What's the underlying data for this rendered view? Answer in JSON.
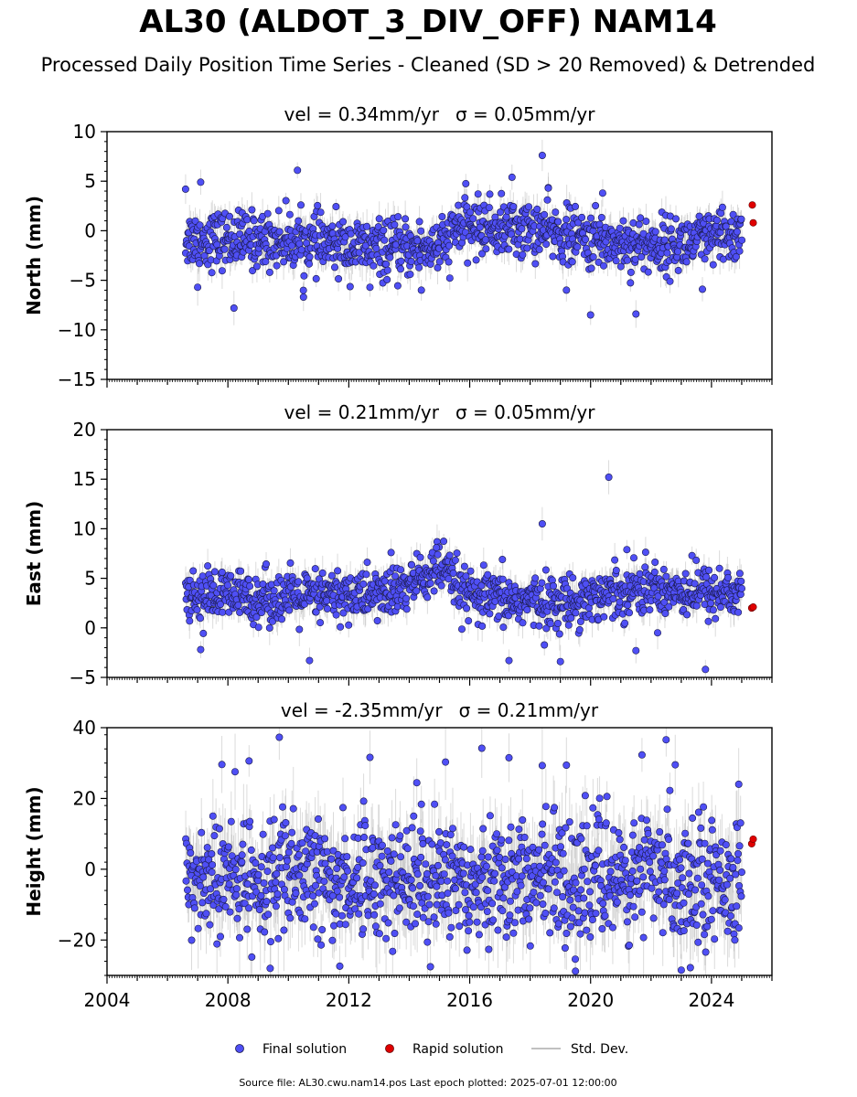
{
  "title": "AL30 (ALDOT_3_DIV_OFF) NAM14",
  "subtitle": "Processed Daily Position Time Series - Cleaned (SD > 20 Removed) & Detrended",
  "footer": "Source file: AL30.cwu.nam14.pos  Last epoch plotted: 2025-07-01 12:00:00",
  "colors": {
    "final": "#4f4ff5",
    "final_edge": "#1a1a4a",
    "rapid": "#e00000",
    "stddev": "#b0b0b0"
  },
  "legend": [
    {
      "label": "Final solution",
      "marker": "final-dot"
    },
    {
      "label": "Rapid solution",
      "marker": "rapid-dot"
    },
    {
      "label": "Std. Dev.",
      "marker": "stddev-line"
    }
  ],
  "chart_data": [
    {
      "type": "scatter",
      "component": "north",
      "title_vel": "vel = 0.34mm/yr",
      "title_sigma": "σ = 0.05mm/yr",
      "ylabel": "North (mm)",
      "xlim": [
        2004,
        2026
      ],
      "ylim": [
        -15,
        10
      ],
      "yticks": [
        -15,
        -10,
        -5,
        0,
        5,
        10
      ],
      "xticks": [
        2004,
        2008,
        2012,
        2016,
        2020,
        2024
      ],
      "series": [
        {
          "name": "Final solution",
          "x_range": [
            2006.6,
            2025.0
          ],
          "y_mean": -1.0,
          "y_spread": 1.4,
          "segments": [
            [
              2006.6,
              -0.8
            ],
            [
              2010.0,
              -1.0
            ],
            [
              2013.5,
              -2.0
            ],
            [
              2015.2,
              -1.5
            ],
            [
              2015.6,
              0.5
            ],
            [
              2018.5,
              0.0
            ],
            [
              2020.0,
              -1.0
            ],
            [
              2022.5,
              -1.5
            ],
            [
              2025.0,
              -0.5
            ]
          ],
          "outliers": [
            [
              2006.6,
              4.2
            ],
            [
              2007.1,
              4.9
            ],
            [
              2010.3,
              6.1
            ],
            [
              2017.4,
              5.4
            ],
            [
              2018.4,
              7.6
            ],
            [
              2018.6,
              4.3
            ],
            [
              2020.4,
              3.8
            ],
            [
              2008.2,
              -7.8
            ],
            [
              2010.5,
              -6.7
            ],
            [
              2020.0,
              -8.5
            ],
            [
              2021.5,
              -8.4
            ],
            [
              2007.0,
              -5.7
            ],
            [
              2012.7,
              -5.7
            ],
            [
              2014.4,
              -6.0
            ],
            [
              2019.2,
              -6.0
            ],
            [
              2023.7,
              -5.9
            ]
          ]
        },
        {
          "name": "Rapid solution",
          "points": [
            [
              2025.35,
              2.6
            ],
            [
              2025.38,
              0.8
            ]
          ]
        }
      ]
    },
    {
      "type": "scatter",
      "component": "east",
      "title_vel": "vel = 0.21mm/yr",
      "title_sigma": "σ = 0.05mm/yr",
      "ylabel": "East (mm)",
      "xlim": [
        2004,
        2026
      ],
      "ylim": [
        -5,
        20
      ],
      "yticks": [
        -5,
        0,
        5,
        10,
        15,
        20
      ],
      "xticks": [
        2004,
        2008,
        2012,
        2016,
        2020,
        2024
      ],
      "series": [
        {
          "name": "Final solution",
          "x_range": [
            2006.6,
            2025.0
          ],
          "y_mean": 3.2,
          "y_spread": 1.3,
          "segments": [
            [
              2006.6,
              3.3
            ],
            [
              2010.0,
              3.0
            ],
            [
              2013.5,
              3.5
            ],
            [
              2015.0,
              6.0
            ],
            [
              2016.0,
              3.0
            ],
            [
              2019.0,
              2.5
            ],
            [
              2021.5,
              4.0
            ],
            [
              2025.0,
              3.5
            ]
          ],
          "outliers": [
            [
              2020.6,
              15.2
            ],
            [
              2018.4,
              10.5
            ],
            [
              2014.9,
              8.1
            ],
            [
              2013.4,
              7.6
            ],
            [
              2021.2,
              7.9
            ],
            [
              2023.8,
              -4.2
            ],
            [
              2010.7,
              -3.3
            ],
            [
              2019.0,
              -3.4
            ],
            [
              2017.3,
              -3.3
            ],
            [
              2007.1,
              -2.2
            ],
            [
              2021.5,
              -2.3
            ]
          ]
        },
        {
          "name": "Rapid solution",
          "points": [
            [
              2025.33,
              2.0
            ],
            [
              2025.38,
              2.1
            ]
          ]
        }
      ]
    },
    {
      "type": "scatter",
      "component": "height",
      "title_vel": "vel = -2.35mm/yr",
      "title_sigma": "σ = 0.21mm/yr",
      "ylabel": "Height (mm)",
      "xlim": [
        2004,
        2026
      ],
      "ylim": [
        -30,
        40
      ],
      "yticks": [
        -20,
        0,
        20,
        40
      ],
      "xticks": [
        2004,
        2008,
        2012,
        2016,
        2020,
        2024
      ],
      "series": [
        {
          "name": "Final solution",
          "x_range": [
            2006.6,
            2025.0
          ],
          "y_mean": -2.0,
          "y_spread": 8.5,
          "segments": [
            [
              2006.6,
              -3.0
            ],
            [
              2025.0,
              -2.0
            ]
          ],
          "outliers": [
            [
              2009.7,
              37.3
            ],
            [
              2022.5,
              36.6
            ],
            [
              2016.4,
              34.2
            ],
            [
              2008.7,
              30.6
            ],
            [
              2007.8,
              29.6
            ],
            [
              2012.7,
              31.6
            ],
            [
              2017.3,
              31.5
            ],
            [
              2018.4,
              29.3
            ],
            [
              2021.7,
              32.3
            ],
            [
              2022.8,
              29.5
            ],
            [
              2024.9,
              24.0
            ],
            [
              2015.2,
              30.3
            ],
            [
              2019.2,
              29.4
            ],
            [
              2009.4,
              -28.0
            ],
            [
              2019.5,
              -28.8
            ],
            [
              2023.3,
              -27.8
            ],
            [
              2023.0,
              -28.5
            ],
            [
              2011.7,
              -27.4
            ]
          ]
        },
        {
          "name": "Rapid solution",
          "points": [
            [
              2025.33,
              7.2
            ],
            [
              2025.38,
              8.5
            ]
          ]
        }
      ]
    }
  ]
}
